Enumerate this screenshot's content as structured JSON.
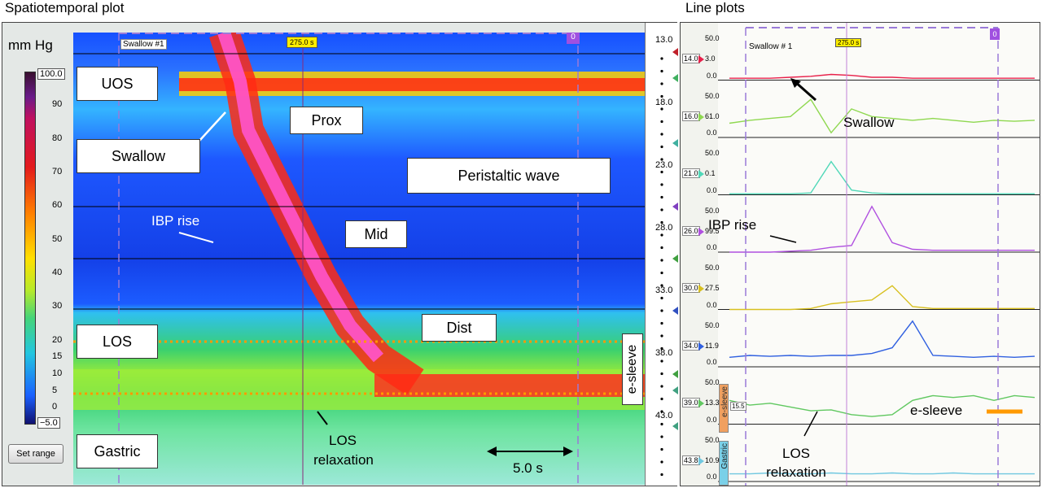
{
  "headings": {
    "left": "Spatiotemporal plot",
    "right": "Line plots"
  },
  "colorbar": {
    "units": "mm Hg",
    "max_label": "100.0",
    "min_label": "−5.0",
    "ticks": [
      "90",
      "80",
      "70",
      "60",
      "50",
      "40",
      "30",
      "20",
      "15",
      "10",
      "5",
      "0"
    ],
    "tick_values": [
      90,
      80,
      70,
      60,
      50,
      40,
      30,
      20,
      15,
      10,
      5,
      0
    ]
  },
  "set_range_label": "Set range",
  "spatiotemporal": {
    "marker_label": "Swallow #1",
    "time_label": "275.0 s",
    "event_box": "0",
    "regions": {
      "uos": "UOS",
      "los": "LOS",
      "gastric": "Gastric"
    },
    "annotations": {
      "swallow": "Swallow",
      "prox": "Prox",
      "peristaltic": "Peristaltic wave",
      "ibp": "IBP rise",
      "mid": "Mid",
      "dist": "Dist",
      "los_relax_1": "LOS",
      "los_relax_2": "relaxation",
      "scale": "5.0 s"
    },
    "esleeve_label": "e-sleeve",
    "depth_labels": [
      "13.0",
      "18.0",
      "23.0",
      "28.0",
      "33.0",
      "38.0",
      "43.0"
    ]
  },
  "lineplots": {
    "marker_label": "Swallow # 1",
    "time_label": "275.0 s",
    "event_box": "0",
    "channels": [
      {
        "depth": "14.0",
        "value": "3.0",
        "scale_top": "50.0",
        "scale_bottom": "0.0",
        "color": "#e8204a"
      },
      {
        "depth": "16.0",
        "value": "61.0",
        "scale_top": "50.0",
        "scale_bottom": "0.0",
        "color": "#8fd850"
      },
      {
        "depth": "21.0",
        "value": "0.1",
        "scale_top": "50.0",
        "scale_bottom": "0.0",
        "color": "#50d8b8"
      },
      {
        "depth": "26.0",
        "value": "99.5",
        "scale_top": "50.0",
        "scale_bottom": "0.0",
        "color": "#b050e0"
      },
      {
        "depth": "30.0",
        "value": "27.5",
        "scale_top": "50.0",
        "scale_bottom": "0.0",
        "color": "#d8c020"
      },
      {
        "depth": "34.0",
        "value": "11.9",
        "scale_top": "50.0",
        "scale_bottom": "0.0",
        "color": "#3060e0"
      },
      {
        "depth": "39.0",
        "value": "13.3",
        "scale_top": "50.0",
        "scale_bottom": "0.0",
        "color": "#60c860"
      },
      {
        "depth": "43.8",
        "value": "10.9",
        "scale_top": "50.0",
        "scale_bottom": "0.0",
        "color": "#70c8e0"
      }
    ],
    "esleeve_value": "15.5",
    "esleeve_tag": "e-sleeve",
    "gastric_tag": "Gastric",
    "annotations": {
      "swallow": "Swallow",
      "ibp": "IBP rise",
      "los_relax_1": "LOS",
      "los_relax_2": "relaxation",
      "esleeve_legend": "e-sleeve"
    }
  },
  "chart_data": [
    {
      "type": "heatmap",
      "title": "Spatiotemporal plot",
      "zlabel": "mm Hg",
      "zlim": [
        -5,
        100
      ],
      "y_ticks": [
        13,
        18,
        23,
        28,
        33,
        38,
        43
      ],
      "time_marker": "275.0 s",
      "scale_bar": "5.0 s"
    },
    {
      "type": "line",
      "title": "Line plots",
      "series": [
        {
          "name": "14.0",
          "value": 3.0,
          "values": [
            2,
            2,
            2,
            3,
            4,
            6,
            5,
            3,
            3,
            2,
            2,
            2,
            2,
            2,
            2,
            2
          ]
        },
        {
          "name": "16.0",
          "value": 61.0,
          "values": [
            15,
            18,
            20,
            22,
            40,
            5,
            30,
            22,
            20,
            18,
            20,
            18,
            16,
            18,
            17,
            18
          ]
        },
        {
          "name": "21.0",
          "value": 0.1,
          "values": [
            1,
            1,
            1,
            1,
            2,
            35,
            5,
            2,
            1,
            1,
            1,
            1,
            1,
            1,
            1,
            1
          ]
        },
        {
          "name": "26.0",
          "value": 99.5,
          "values": [
            0,
            0,
            0,
            1,
            2,
            5,
            7,
            48,
            10,
            3,
            2,
            2,
            2,
            2,
            2,
            2
          ]
        },
        {
          "name": "30.0",
          "value": 27.5,
          "values": [
            0,
            0,
            0,
            0,
            1,
            6,
            8,
            10,
            25,
            3,
            1,
            1,
            1,
            1,
            1,
            1
          ]
        },
        {
          "name": "34.0",
          "value": 11.9,
          "values": [
            10,
            12,
            11,
            12,
            11,
            12,
            12,
            14,
            20,
            48,
            12,
            11,
            10,
            11,
            10,
            11
          ]
        },
        {
          "name": "39.0",
          "value": 13.3,
          "values": [
            25,
            20,
            22,
            18,
            14,
            15,
            10,
            8,
            10,
            25,
            30,
            28,
            30,
            25,
            30,
            28
          ]
        },
        {
          "name": "43.8",
          "value": 10.9,
          "values": [
            8,
            8,
            9,
            8,
            8,
            9,
            8,
            8,
            9,
            8,
            8,
            9,
            8,
            8,
            8,
            8
          ]
        }
      ]
    }
  ]
}
